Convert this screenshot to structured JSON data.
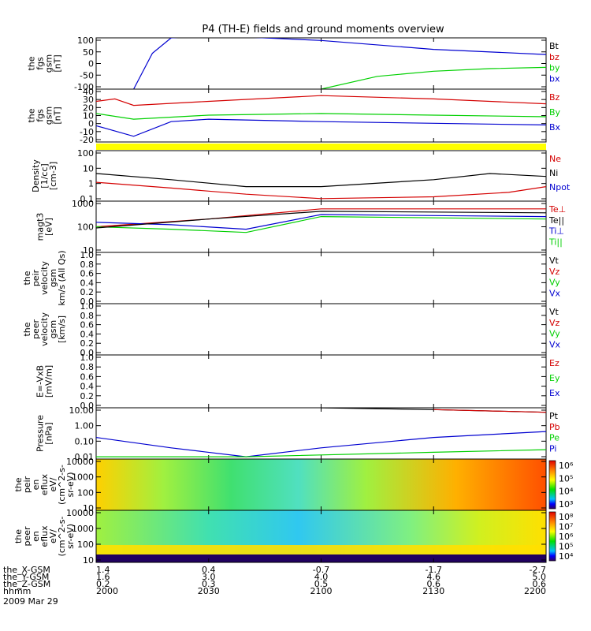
{
  "title": "P4 (TH-E) fields and ground moments overview",
  "colors": {
    "black": "#000000",
    "red": "#d40000",
    "green": "#00d000",
    "blue": "#0000d0",
    "yellow": "#ffff00"
  },
  "chart_data": [
    {
      "type": "line",
      "id": "fgs_gse_global",
      "ylabel": [
        "the",
        "fgs",
        "gsm",
        "[nT]"
      ],
      "ticks": [
        "100",
        "50",
        "0",
        "-50",
        "-100"
      ],
      "ylim": [
        -100,
        100
      ],
      "legend": [
        {
          "name": "Bt",
          "color": "black"
        },
        {
          "name": "bz",
          "color": "red"
        },
        {
          "name": "by",
          "color": "green"
        },
        {
          "name": "bx",
          "color": "blue"
        }
      ],
      "series": [
        {
          "name": "bx",
          "color": "blue",
          "x": [
            "2010",
            "2015",
            "2020",
            "2030",
            "2100",
            "2130",
            "2200"
          ],
          "y": [
            -100,
            40,
            100,
            110,
            90,
            55,
            35
          ]
        },
        {
          "name": "by",
          "color": "green",
          "x": [
            "2100",
            "2115",
            "2130",
            "2145",
            "2200"
          ],
          "y": [
            -100,
            -50,
            -30,
            -20,
            -15
          ]
        }
      ]
    },
    {
      "type": "line",
      "id": "fgs_gsm_zoom",
      "ylabel": [
        "the",
        "fgs",
        "gsm",
        "[nT]"
      ],
      "ticks": [
        "40",
        "30",
        "20",
        "10",
        "0",
        "-10",
        "-20"
      ],
      "ylim": [
        -25,
        40
      ],
      "legend": [
        {
          "name": "Bz",
          "color": "red"
        },
        {
          "name": "By",
          "color": "green"
        },
        {
          "name": "Bx",
          "color": "blue"
        }
      ],
      "series": [
        {
          "name": "Bz",
          "color": "red",
          "x": [
            "2000",
            "2005",
            "2010",
            "2030",
            "2100",
            "2130",
            "2200"
          ],
          "y": [
            25,
            28,
            20,
            25,
            32,
            28,
            22
          ]
        },
        {
          "name": "By",
          "color": "green",
          "x": [
            "2000",
            "2010",
            "2030",
            "2100",
            "2130",
            "2200"
          ],
          "y": [
            10,
            3,
            8,
            10,
            8,
            6
          ]
        },
        {
          "name": "Bx",
          "color": "blue",
          "x": [
            "2000",
            "2010",
            "2020",
            "2030",
            "2100",
            "2130",
            "2200"
          ],
          "y": [
            -5,
            -18,
            0,
            3,
            0,
            -2,
            -4
          ]
        }
      ]
    },
    {
      "type": "line",
      "id": "density",
      "ylabel": [
        "Density",
        "[1/cc]",
        "[cm-3]"
      ],
      "ticks": [
        "100",
        "10",
        "1",
        "0.1"
      ],
      "ylim": [
        0.1,
        300
      ],
      "log": true,
      "legend": [
        {
          "name": "Ne",
          "color": "red"
        },
        {
          "name": "Ni",
          "color": "black"
        },
        {
          "name": "Npot",
          "color": "blue"
        }
      ],
      "series": [
        {
          "name": "Ni",
          "color": "black",
          "x": [
            "2000",
            "2020",
            "2040",
            "2100",
            "2130",
            "2145",
            "2200"
          ],
          "y": [
            8,
            3,
            1,
            1,
            3,
            8,
            5
          ]
        },
        {
          "name": "Ne",
          "color": "red",
          "x": [
            "2000",
            "2020",
            "2040",
            "2100",
            "2130",
            "2150",
            "2200"
          ],
          "y": [
            2,
            0.8,
            0.3,
            0.15,
            0.2,
            0.4,
            1
          ]
        }
      ]
    },
    {
      "type": "line",
      "id": "temperature",
      "ylabel": [
        "magt3",
        "[eV]"
      ],
      "ticks": [
        "1000",
        "100",
        "10"
      ],
      "ylim": [
        10,
        1000
      ],
      "log": true,
      "legend": [
        {
          "name": "Te⊥",
          "color": "red"
        },
        {
          "name": "Te||",
          "color": "black"
        },
        {
          "name": "Ti⊥",
          "color": "blue"
        },
        {
          "name": "Ti||",
          "color": "green"
        }
      ],
      "series": [
        {
          "name": "Te⊥",
          "color": "red",
          "x": [
            "2000",
            "2030",
            "2100",
            "2130",
            "2200"
          ],
          "y": [
            100,
            200,
            500,
            500,
            500
          ]
        },
        {
          "name": "Ti⊥",
          "color": "blue",
          "x": [
            "2000",
            "2020",
            "2040",
            "2100",
            "2200"
          ],
          "y": [
            150,
            120,
            80,
            300,
            250
          ]
        },
        {
          "name": "Ti||",
          "color": "green",
          "x": [
            "2000",
            "2020",
            "2040",
            "2100",
            "2200"
          ],
          "y": [
            100,
            80,
            60,
            250,
            200
          ]
        },
        {
          "name": "Te||",
          "color": "black",
          "x": [
            "2000",
            "2030",
            "2100",
            "2200"
          ],
          "y": [
            90,
            200,
            400,
            350
          ]
        }
      ]
    },
    {
      "type": "line",
      "id": "peir_velocity",
      "ylabel": [
        "the",
        "peir",
        "velocity",
        "gsm",
        "km/s (All Qs)"
      ],
      "ticks": [
        "1.0",
        "0.8",
        "0.6",
        "0.4",
        "0.2",
        "0.0"
      ],
      "ylim": [
        0,
        1
      ],
      "legend": [
        {
          "name": "Vt",
          "color": "black"
        },
        {
          "name": "Vz",
          "color": "red"
        },
        {
          "name": "Vy",
          "color": "green"
        },
        {
          "name": "Vx",
          "color": "blue"
        }
      ],
      "series": []
    },
    {
      "type": "line",
      "id": "peer_velocity",
      "ylabel": [
        "the",
        "peer",
        "velocity",
        "gsm",
        "[km/s]"
      ],
      "ticks": [
        "1.0",
        "0.8",
        "0.6",
        "0.4",
        "0.2",
        "0.0"
      ],
      "ylim": [
        0,
        1
      ],
      "legend": [
        {
          "name": "Vt",
          "color": "black"
        },
        {
          "name": "Vz",
          "color": "red"
        },
        {
          "name": "Vy",
          "color": "green"
        },
        {
          "name": "Vx",
          "color": "blue"
        }
      ],
      "series": []
    },
    {
      "type": "line",
      "id": "e_field",
      "ylabel": [
        "E=-VxB",
        "[mV/m]"
      ],
      "ticks": [
        "1.0",
        "0.8",
        "0.6",
        "0.4",
        "0.2",
        "0.0"
      ],
      "ylim": [
        0,
        1
      ],
      "legend": [
        {
          "name": "Ez",
          "color": "red"
        },
        {
          "name": "Ey",
          "color": "green"
        },
        {
          "name": "Ex",
          "color": "blue"
        }
      ],
      "series": []
    },
    {
      "type": "line",
      "id": "pressure",
      "ylabel": [
        "Pressure",
        "[nPa]"
      ],
      "ticks": [
        "10.00",
        "1.00",
        "0.10",
        "0.01"
      ],
      "ylim": [
        0.007,
        20
      ],
      "log": true,
      "legend": [
        {
          "name": "Pt",
          "color": "black"
        },
        {
          "name": "Pb",
          "color": "red"
        },
        {
          "name": "Pe",
          "color": "green"
        },
        {
          "name": "Pi",
          "color": "blue"
        }
      ],
      "series": [
        {
          "name": "Pt",
          "color": "black",
          "x": [
            "2100",
            "2130",
            "2200"
          ],
          "y": [
            20,
            15,
            10
          ]
        },
        {
          "name": "Pb",
          "color": "red",
          "x": [
            "2130",
            "2200"
          ],
          "y": [
            15,
            10
          ]
        },
        {
          "name": "Pi",
          "color": "blue",
          "x": [
            "2000",
            "2020",
            "2040",
            "2100",
            "2130",
            "2200"
          ],
          "y": [
            0.2,
            0.04,
            0.01,
            0.04,
            0.2,
            0.5
          ]
        },
        {
          "name": "Pe",
          "color": "green",
          "x": [
            "2000",
            "2040",
            "2130",
            "2200"
          ],
          "y": [
            0.01,
            0.01,
            0.02,
            0.03
          ]
        }
      ]
    },
    {
      "type": "heatmap",
      "id": "peir_spec",
      "ylabel": [
        "the",
        "peir",
        "en",
        "eflux",
        "eV/",
        "(cm^2-s-",
        "sr-eV)"
      ],
      "ticks": [
        "10000",
        "1000",
        "100",
        "10"
      ],
      "log": true,
      "colorbar": {
        "ticks": [
          "10⁶",
          "10⁵",
          "10⁴",
          "10³"
        ]
      }
    },
    {
      "type": "heatmap",
      "id": "peer_spec",
      "ylabel": [
        "the",
        "peer",
        "en",
        "eflux",
        "eV/",
        "(cm^2-s-",
        "sr-eV)"
      ],
      "ticks": [
        "10000",
        "1000",
        "100",
        "10"
      ],
      "log": true,
      "colorbar": {
        "ticks": [
          "10⁸",
          "10⁷",
          "10⁶",
          "10⁵",
          "10⁴"
        ]
      }
    }
  ],
  "footer": {
    "rows": [
      {
        "label": "the_X-GSM",
        "values": [
          "1.4",
          "0.4",
          "-0.7",
          "-1.7",
          "-2.7"
        ]
      },
      {
        "label": "the_Y-GSM",
        "values": [
          "1.6",
          "3.0",
          "4.0",
          "4.6",
          "5.0"
        ]
      },
      {
        "label": "the_Z-GSM",
        "values": [
          "0.2",
          "0.3",
          "0.5",
          "0.6",
          "0.6"
        ]
      },
      {
        "label": "hhmm",
        "values": [
          "2000",
          "2030",
          "2100",
          "2130",
          "2200"
        ]
      }
    ],
    "date": "2009 Mar 29"
  }
}
